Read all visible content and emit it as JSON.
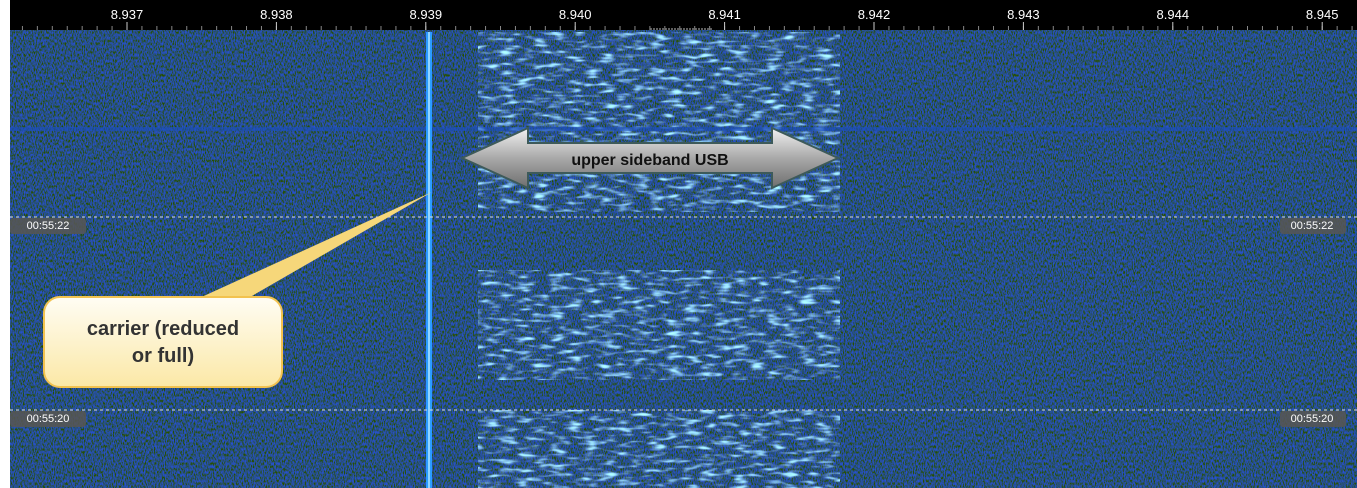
{
  "frequency_scale": {
    "labels": [
      "8.937",
      "8.938",
      "8.939",
      "8.940",
      "8.941",
      "8.942",
      "8.943",
      "8.944",
      "8.945"
    ]
  },
  "time_markers": [
    {
      "label": "00:55:22"
    },
    {
      "label": "00:55:20"
    }
  ],
  "annotations": {
    "sideband": "upper sideband USB",
    "carrier": [
      "carrier (reduced",
      "or full)"
    ]
  }
}
